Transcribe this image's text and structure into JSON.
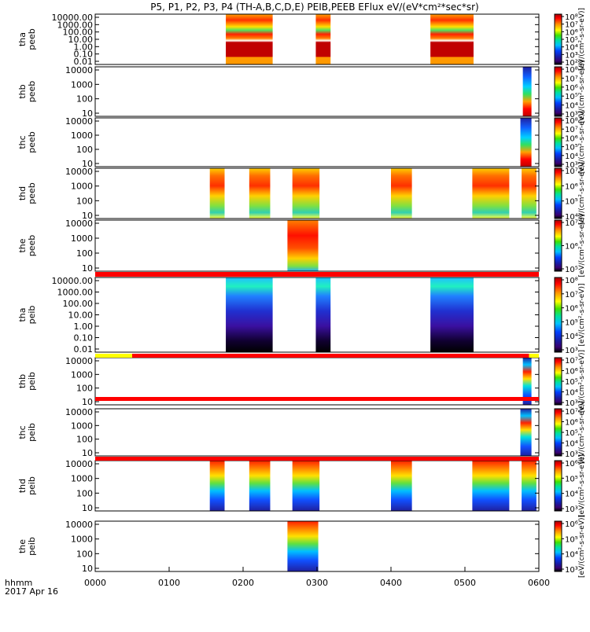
{
  "chart_data": {
    "type": "heatmap",
    "title": "P5, P1, P2, P3, P4 (TH-A,B,C,D,E) PEIB,PEEB EFlux eV/(eV*cm²*sec*sr)",
    "x_label_line1": "hhmm",
    "x_label_line2": "2017 Apr 16",
    "xlim": [
      "0000",
      "0600"
    ],
    "x_ticks": [
      "0000",
      "0100",
      "0200",
      "0300",
      "0400",
      "0500",
      "0600"
    ],
    "colorbar_label": "[eV/(cm²-s-sr-eV)]",
    "panels": [
      {
        "name": "tha peeb",
        "ylabel_1": "tha",
        "ylabel_2": "peeb",
        "yticks": [
          "10000.00",
          "1000.00",
          "100.00",
          "10.00",
          "1.00",
          "0.10",
          "0.01"
        ],
        "colorbar_ticks": [
          "10⁸",
          "10⁷",
          "10⁶",
          "10⁵",
          "10⁴",
          "10³",
          "10²"
        ],
        "intervals": [
          [
            "0146",
            "0224"
          ],
          [
            "0259",
            "0311"
          ],
          [
            "0432",
            "0507"
          ]
        ]
      },
      {
        "name": "thb peeb",
        "ylabel_1": "thb",
        "ylabel_2": "peeb",
        "yticks": [
          "10000",
          "1000",
          "100",
          "10"
        ],
        "colorbar_ticks": [
          "10⁸",
          "10⁷",
          "10⁶",
          "10⁵",
          "10⁴",
          "10³"
        ],
        "intervals": [
          [
            "0547",
            "0554"
          ]
        ]
      },
      {
        "name": "thc peeb",
        "ylabel_1": "thc",
        "ylabel_2": "peeb",
        "yticks": [
          "10000",
          "1000",
          "100",
          "10"
        ],
        "colorbar_ticks": [
          "10⁸",
          "10⁷",
          "10⁶",
          "10⁵",
          "10⁴",
          "10³"
        ],
        "intervals": [
          [
            "0545",
            "0554"
          ]
        ]
      },
      {
        "name": "thd peeb",
        "ylabel_1": "thd",
        "ylabel_2": "peeb",
        "yticks": [
          "10000",
          "1000",
          "100",
          "10"
        ],
        "colorbar_ticks": [
          "10⁷",
          "10⁶",
          "10⁵",
          "10⁴"
        ],
        "intervals": [
          [
            "0133",
            "0145"
          ],
          [
            "0205",
            "0222"
          ],
          [
            "0240",
            "0302"
          ],
          [
            "0400",
            "0417"
          ],
          [
            "0506",
            "0536"
          ],
          [
            "0546",
            "0558"
          ]
        ]
      },
      {
        "name": "the peeb",
        "ylabel_1": "the",
        "ylabel_2": "peeb",
        "yticks": [
          "10000",
          "1000",
          "100",
          "10"
        ],
        "colorbar_ticks": [
          "10⁷",
          "10⁶",
          "10⁵"
        ],
        "intervals": [
          [
            "0236",
            "0301"
          ]
        ]
      },
      {
        "name": "tha peib",
        "ylabel_1": "tha",
        "ylabel_2": "peib",
        "yticks": [
          "10000.00",
          "1000.00",
          "100.00",
          "10.00",
          "1.00",
          "0.10",
          "0.01"
        ],
        "colorbar_ticks": [
          "10⁸",
          "10⁷",
          "10⁶",
          "10⁵",
          "10⁴",
          "10³"
        ],
        "intervals": [
          [
            "0146",
            "0224"
          ],
          [
            "0259",
            "0311"
          ],
          [
            "0432",
            "0507"
          ]
        ]
      },
      {
        "name": "thb peib",
        "ylabel_1": "thb",
        "ylabel_2": "peib",
        "yticks": [
          "10000",
          "1000",
          "100",
          "10"
        ],
        "colorbar_ticks": [
          "10⁷",
          "10⁶",
          "10⁵",
          "10⁴",
          "10³"
        ],
        "intervals": [
          [
            "0547",
            "0554"
          ]
        ]
      },
      {
        "name": "thc peib",
        "ylabel_1": "thc",
        "ylabel_2": "peib",
        "yticks": [
          "10000",
          "1000",
          "100",
          "10"
        ],
        "colorbar_ticks": [
          "10⁷",
          "10⁶",
          "10⁵",
          "10⁴",
          "10³"
        ],
        "intervals": [
          [
            "0545",
            "0554"
          ]
        ]
      },
      {
        "name": "thd peib",
        "ylabel_1": "thd",
        "ylabel_2": "peib",
        "yticks": [
          "10000",
          "1000",
          "100",
          "10"
        ],
        "colorbar_ticks": [
          "10⁶",
          "10⁵",
          "10⁴",
          "10³"
        ],
        "intervals": [
          [
            "0133",
            "0145"
          ],
          [
            "0205",
            "0222"
          ],
          [
            "0240",
            "0302"
          ],
          [
            "0400",
            "0417"
          ],
          [
            "0506",
            "0536"
          ],
          [
            "0546",
            "0558"
          ]
        ]
      },
      {
        "name": "the peib",
        "ylabel_1": "the",
        "ylabel_2": "peib",
        "yticks": [
          "10000",
          "1000",
          "100",
          "10"
        ],
        "colorbar_ticks": [
          "10⁶",
          "10⁵",
          "10⁴",
          "10³"
        ],
        "intervals": [
          [
            "0236",
            "0301"
          ]
        ]
      }
    ],
    "colors": {
      "red": "#ff0000",
      "yellow": "#ffff00",
      "dark_red": "#c00000",
      "orange": "#ff9900",
      "navy": "#1a1a90"
    }
  }
}
